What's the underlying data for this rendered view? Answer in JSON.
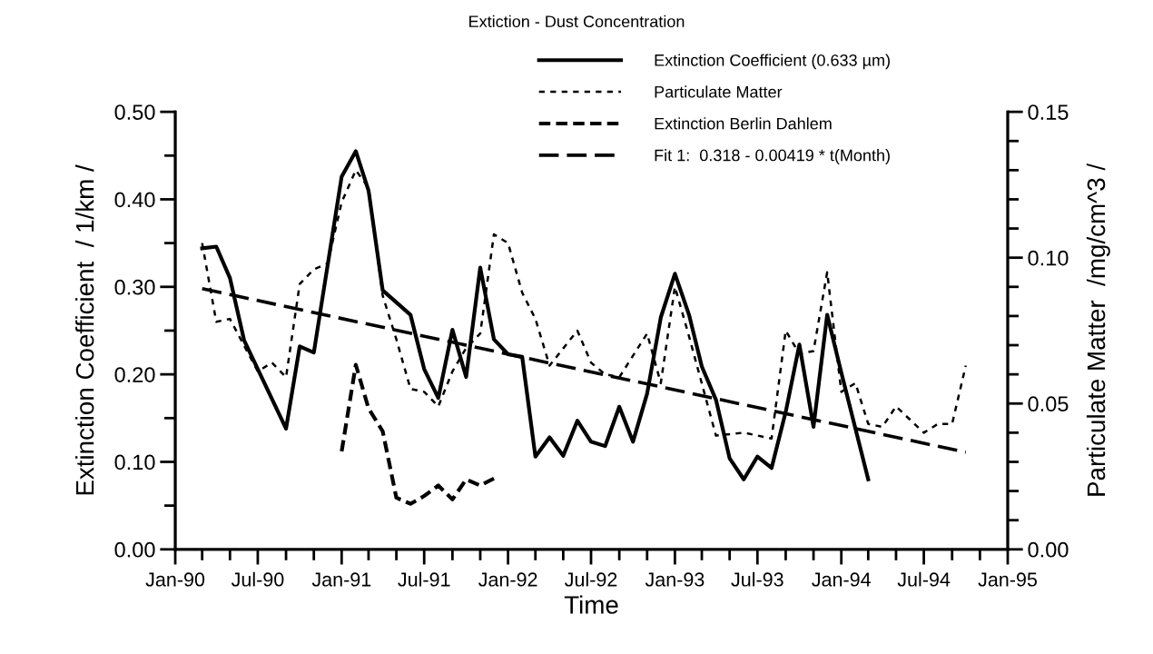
{
  "chart_data": {
    "type": "line",
    "title": "Extiction - Dust Concentration",
    "xlabel": "Time",
    "ylabel": "Extinction Coefficient  / 1/km /",
    "y2label": "Particulate Matter  /mg/cm^3 /",
    "legend": "top",
    "grid": false,
    "xlim": [
      "1990-01",
      "1995-01"
    ],
    "xticks": [
      {
        "value": "1990-01",
        "label": "Jan-90"
      },
      {
        "value": "1990-03",
        "label": null
      },
      {
        "value": "1990-05",
        "label": null
      },
      {
        "value": "1990-07",
        "label": "Jul-90"
      },
      {
        "value": "1990-09",
        "label": null
      },
      {
        "value": "1990-11",
        "label": null
      },
      {
        "value": "1991-01",
        "label": "Jan-91"
      },
      {
        "value": "1991-03",
        "label": null
      },
      {
        "value": "1991-05",
        "label": null
      },
      {
        "value": "1991-07",
        "label": "Jul-91"
      },
      {
        "value": "1991-09",
        "label": null
      },
      {
        "value": "1991-11",
        "label": null
      },
      {
        "value": "1992-01",
        "label": "Jan-92"
      },
      {
        "value": "1992-03",
        "label": null
      },
      {
        "value": "1992-05",
        "label": null
      },
      {
        "value": "1992-07",
        "label": "Jul-92"
      },
      {
        "value": "1992-09",
        "label": null
      },
      {
        "value": "1992-11",
        "label": null
      },
      {
        "value": "1993-01",
        "label": "Jan-93"
      },
      {
        "value": "1993-03",
        "label": null
      },
      {
        "value": "1993-05",
        "label": null
      },
      {
        "value": "1993-07",
        "label": "Jul-93"
      },
      {
        "value": "1993-09",
        "label": null
      },
      {
        "value": "1993-11",
        "label": null
      },
      {
        "value": "1994-01",
        "label": "Jan-94"
      },
      {
        "value": "1994-03",
        "label": null
      },
      {
        "value": "1994-05",
        "label": null
      },
      {
        "value": "1994-07",
        "label": "Jul-94"
      },
      {
        "value": "1994-09",
        "label": null
      },
      {
        "value": "1994-11",
        "label": null
      },
      {
        "value": "1995-01",
        "label": "Jan-95"
      }
    ],
    "ylim": [
      0,
      0.5
    ],
    "yticks": [
      {
        "value": 0,
        "label": "0.00"
      },
      {
        "value": 0.05,
        "label": null
      },
      {
        "value": 0.1,
        "label": "0.10"
      },
      {
        "value": 0.15,
        "label": null
      },
      {
        "value": 0.2,
        "label": "0.20"
      },
      {
        "value": 0.25,
        "label": null
      },
      {
        "value": 0.3,
        "label": "0.30"
      },
      {
        "value": 0.35,
        "label": null
      },
      {
        "value": 0.4,
        "label": "0.40"
      },
      {
        "value": 0.45,
        "label": null
      },
      {
        "value": 0.5,
        "label": "0.50"
      }
    ],
    "y2lim": [
      0,
      0.15
    ],
    "y2ticks": [
      {
        "value": 0,
        "label": "0.00"
      },
      {
        "value": 0.01,
        "label": null
      },
      {
        "value": 0.02,
        "label": null
      },
      {
        "value": 0.03,
        "label": null
      },
      {
        "value": 0.04,
        "label": null
      },
      {
        "value": 0.05,
        "label": "0.05"
      },
      {
        "value": 0.06,
        "label": null
      },
      {
        "value": 0.07,
        "label": null
      },
      {
        "value": 0.08,
        "label": null
      },
      {
        "value": 0.09,
        "label": null
      },
      {
        "value": 0.1,
        "label": "0.10"
      },
      {
        "value": 0.11,
        "label": null
      },
      {
        "value": 0.12,
        "label": null
      },
      {
        "value": 0.13,
        "label": null
      },
      {
        "value": 0.14,
        "label": null
      },
      {
        "value": 0.15,
        "label": "0.15"
      }
    ],
    "series": [
      {
        "name": "Extinction Coefficient (0.633 µm)",
        "color": "#000000",
        "line_style": "solid",
        "x": [
          "1990-03",
          "1990-04",
          "1990-05",
          "1990-06",
          "1990-09",
          "1990-10",
          "1990-11",
          "1991-01",
          "1991-02",
          "1991-03",
          "1991-04",
          "1991-06",
          "1991-07",
          "1991-08",
          "1991-09",
          "1991-10",
          "1991-11",
          "1991-12",
          "1992-01",
          "1992-02",
          "1992-03",
          "1992-04",
          "1992-05",
          "1992-06",
          "1992-07",
          "1992-08",
          "1992-09",
          "1992-10",
          "1992-11",
          "1992-12",
          "1993-01",
          "1993-02",
          "1993-03",
          "1993-04",
          "1993-05",
          "1993-06",
          "1993-07",
          "1993-08",
          "1993-09",
          "1993-10",
          "1993-11",
          "1993-12",
          "1994-01",
          "1994-03"
        ],
        "values": [
          0.344,
          0.346,
          0.31,
          0.239,
          0.138,
          0.232,
          0.225,
          0.426,
          0.455,
          0.41,
          0.296,
          0.268,
          0.206,
          0.173,
          0.251,
          0.197,
          0.322,
          0.24,
          0.223,
          0.22,
          0.106,
          0.128,
          0.107,
          0.147,
          0.123,
          0.118,
          0.163,
          0.123,
          0.178,
          0.265,
          0.315,
          0.268,
          0.209,
          0.171,
          0.104,
          0.08,
          0.106,
          0.093,
          0.157,
          0.234,
          0.14,
          0.268,
          0.202,
          0.08
        ]
      },
      {
        "name": "Particulate Matter",
        "color": "#000000",
        "line_style": "dotted",
        "axis": "y2",
        "x": [
          "1990-03",
          "1990-04",
          "1990-05",
          "1990-07",
          "1990-08",
          "1990-09",
          "1990-10",
          "1990-11",
          "1990-12",
          "1991-01",
          "1991-02",
          "1991-03",
          "1991-04",
          "1991-05",
          "1991-06",
          "1991-07",
          "1991-08",
          "1991-09",
          "1991-10",
          "1991-11",
          "1991-12",
          "1992-01",
          "1992-02",
          "1992-03",
          "1992-04",
          "1992-06",
          "1992-07",
          "1992-08",
          "1992-09",
          "1992-11",
          "1992-12",
          "1993-01",
          "1993-02",
          "1993-04",
          "1993-06",
          "1993-08",
          "1993-09",
          "1993-10",
          "1993-11",
          "1993-12",
          "1994-01",
          "1994-02",
          "1994-03",
          "1994-04",
          "1994-05",
          "1994-07",
          "1994-08",
          "1994-09",
          "1994-10"
        ],
        "values": [
          0.105,
          0.078,
          0.079,
          0.061,
          0.064,
          0.059,
          0.091,
          0.096,
          0.098,
          0.119,
          0.13,
          0.124,
          0.087,
          0.072,
          0.055,
          0.054,
          0.049,
          0.061,
          0.069,
          0.074,
          0.108,
          0.105,
          0.088,
          0.079,
          0.063,
          0.075,
          0.064,
          0.06,
          0.059,
          0.074,
          0.057,
          0.09,
          0.073,
          0.039,
          0.04,
          0.038,
          0.075,
          0.067,
          0.068,
          0.095,
          0.054,
          0.057,
          0.043,
          0.042,
          0.049,
          0.04,
          0.043,
          0.043,
          0.063
        ]
      },
      {
        "name": "Extinction Berlin Dahlem",
        "color": "#000000",
        "line_style": "dashed",
        "x": [
          "1991-01",
          "1991-02",
          "1991-03",
          "1991-04",
          "1991-05",
          "1991-06",
          "1991-07",
          "1991-08",
          "1991-09",
          "1991-10",
          "1991-11",
          "1991-12"
        ],
        "values": [
          0.112,
          0.211,
          0.161,
          0.135,
          0.059,
          0.052,
          0.061,
          0.073,
          0.057,
          0.08,
          0.073,
          0.081
        ]
      },
      {
        "name": "Fit 1:  0.318 - 0.00419 * t(Month)",
        "color": "#000000",
        "line_style": "longdash",
        "x": [
          "1990-03",
          "1994-10"
        ],
        "values": [
          0.298,
          0.111
        ]
      }
    ]
  }
}
